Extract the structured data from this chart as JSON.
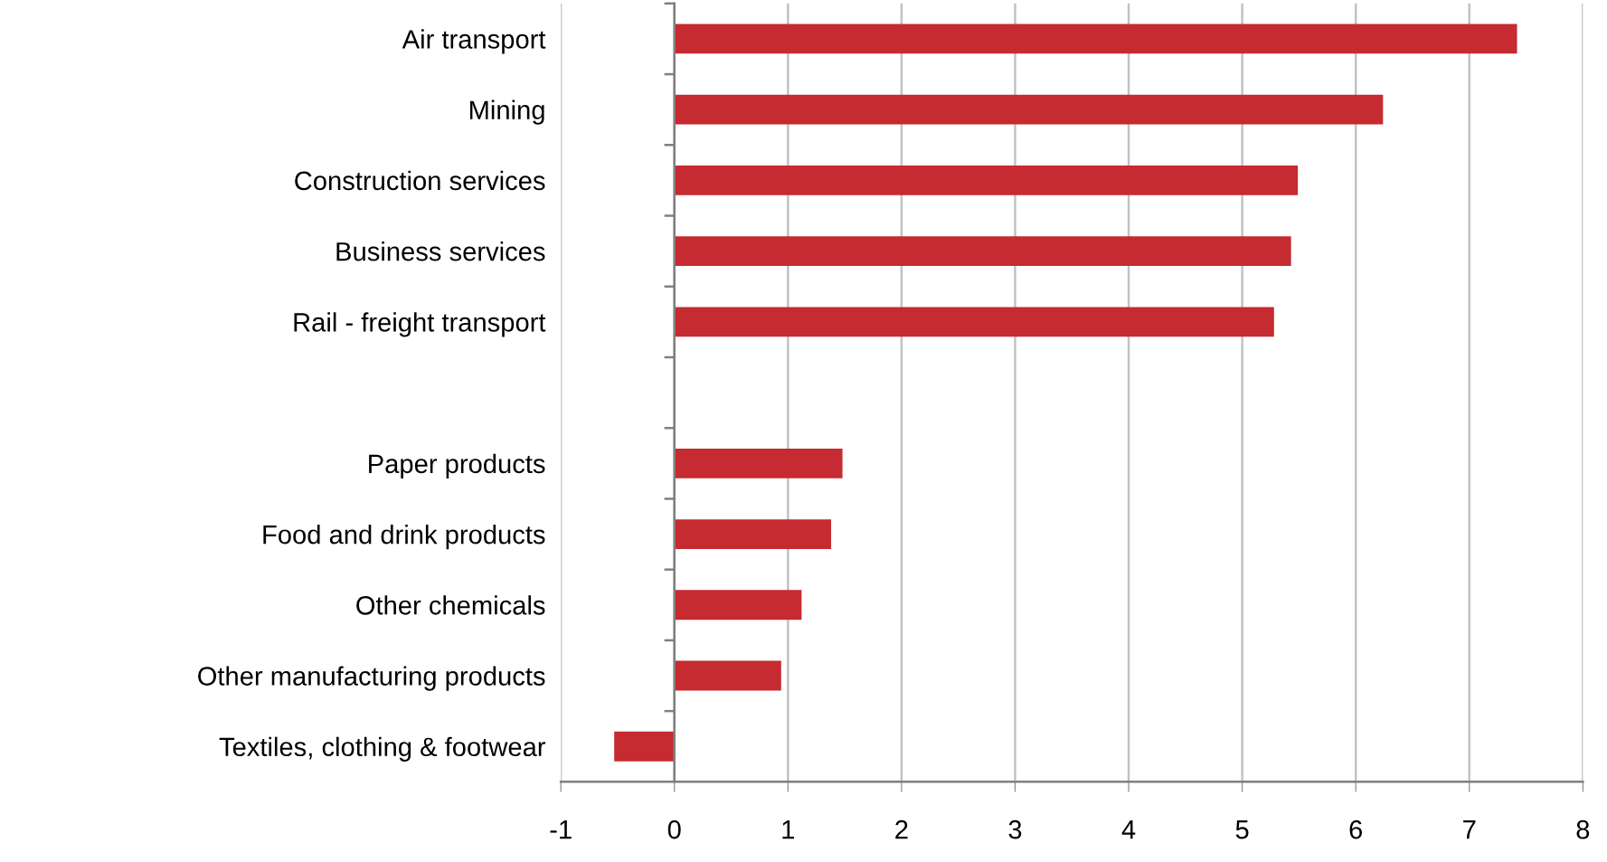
{
  "chart_data": {
    "type": "bar",
    "orientation": "horizontal",
    "categories": [
      "Air transport",
      "Mining",
      "Construction services",
      "Business services",
      "Rail - freight transport",
      null,
      "Paper products",
      "Food and drink products",
      "Other chemicals",
      "Other manufacturing products",
      "Textiles, clothing & footwear"
    ],
    "values": [
      7.42,
      6.24,
      5.49,
      5.43,
      5.28,
      null,
      1.48,
      1.38,
      1.12,
      0.94,
      -0.53
    ],
    "color": "#c52b30",
    "xlim": [
      -1,
      8
    ],
    "xticks": [
      -1,
      0,
      1,
      2,
      3,
      4,
      5,
      6,
      7,
      8
    ],
    "grid": "x"
  }
}
